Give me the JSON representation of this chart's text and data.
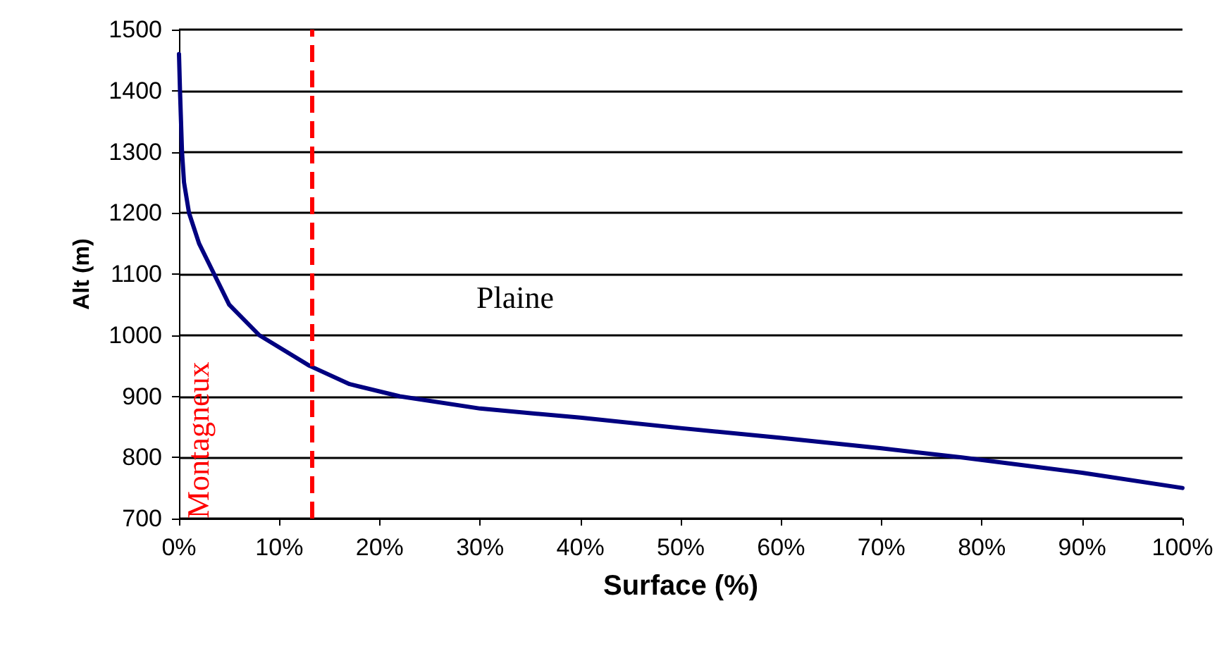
{
  "chart_data": {
    "type": "line",
    "xlabel": "Surface (%)",
    "ylabel": "Alt (m)",
    "x": [
      0,
      0.1,
      0.2,
      0.3,
      0.5,
      1,
      2,
      3.5,
      5,
      8,
      13,
      17,
      22,
      30,
      40,
      50,
      60,
      70,
      78,
      90,
      100
    ],
    "series": [
      {
        "color": "#000080",
        "values": [
          1460,
          1400,
          1350,
          1300,
          1250,
          1200,
          1150,
          1100,
          1050,
          1000,
          950,
          920,
          900,
          880,
          865,
          848,
          832,
          815,
          800,
          775,
          750
        ]
      }
    ],
    "xlim": [
      0,
      100
    ],
    "ylim": [
      700,
      1500
    ],
    "xticks": [
      {
        "value": 0,
        "label": "0%"
      },
      {
        "value": 10,
        "label": "10%"
      },
      {
        "value": 20,
        "label": "20%"
      },
      {
        "value": 30,
        "label": "30%"
      },
      {
        "value": 40,
        "label": "40%"
      },
      {
        "value": 50,
        "label": "50%"
      },
      {
        "value": 60,
        "label": "60%"
      },
      {
        "value": 70,
        "label": "70%"
      },
      {
        "value": 80,
        "label": "80%"
      },
      {
        "value": 90,
        "label": "90%"
      },
      {
        "value": 100,
        "label": "100%"
      }
    ],
    "yticks": [
      700,
      800,
      900,
      1000,
      1100,
      1200,
      1300,
      1400,
      1500
    ],
    "ref_lines": [
      {
        "axis": "x",
        "value": 13.3,
        "label": "Montagneux",
        "color": "#ff0000",
        "line_style": "dashed"
      }
    ],
    "annotations": [
      "Plaine"
    ],
    "grid": "y",
    "marker": "none",
    "line_style": "solid"
  }
}
